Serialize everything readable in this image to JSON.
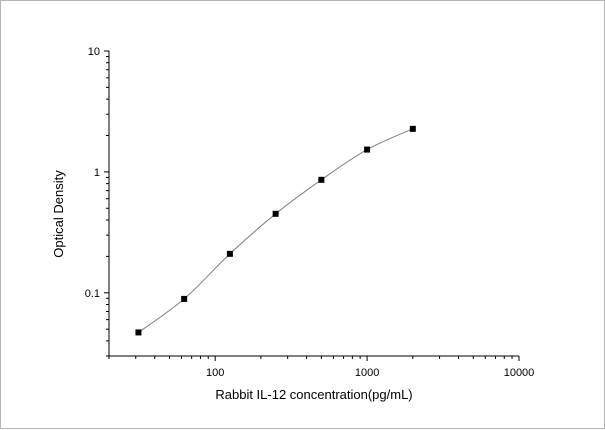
{
  "chart_data": {
    "type": "scatter",
    "title": "",
    "xlabel": "Rabbit IL-12 concentration(pg/mL)",
    "ylabel": "Optical Density",
    "x_scale": "log",
    "y_scale": "log",
    "xlim": [
      20,
      10000
    ],
    "ylim": [
      0.03,
      10
    ],
    "x_ticks": [
      100,
      1000,
      10000
    ],
    "x_tick_labels": [
      "100",
      "1000",
      "10000"
    ],
    "y_ticks": [
      0.1,
      1,
      10
    ],
    "y_tick_labels": [
      "0.1",
      "1",
      "10"
    ],
    "grid": false,
    "legend": "none",
    "series": [
      {
        "marker": "square",
        "color": "#000000",
        "points": [
          {
            "x": 31.25,
            "y": 0.047
          },
          {
            "x": 62.5,
            "y": 0.089
          },
          {
            "x": 125,
            "y": 0.21
          },
          {
            "x": 250,
            "y": 0.45
          },
          {
            "x": 500,
            "y": 0.86
          },
          {
            "x": 1000,
            "y": 1.53
          },
          {
            "x": 2000,
            "y": 2.27
          }
        ]
      }
    ],
    "fit_line_color": "#808080"
  }
}
